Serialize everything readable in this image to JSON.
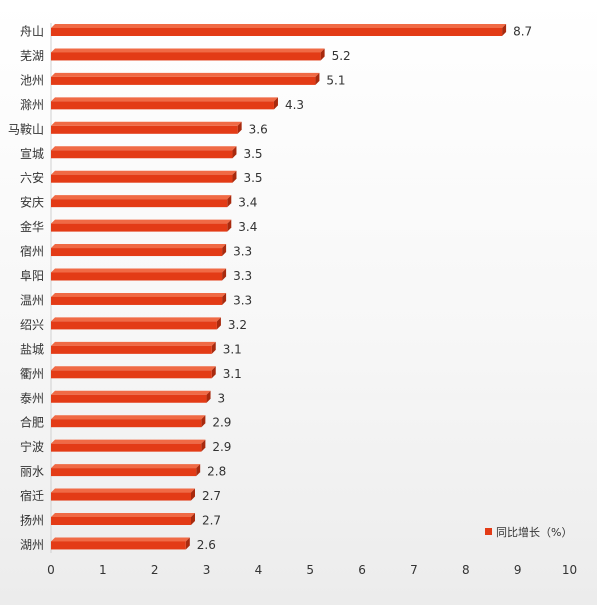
{
  "chart_data": {
    "type": "bar",
    "orientation": "horizontal",
    "categories": [
      "舟山",
      "芜湖",
      "池州",
      "滁州",
      "马鞍山",
      "宣城",
      "六安",
      "安庆",
      "金华",
      "宿州",
      "阜阳",
      "温州",
      "绍兴",
      "盐城",
      "衢州",
      "泰州",
      "合肥",
      "宁波",
      "丽水",
      "宿迁",
      "扬州",
      "湖州"
    ],
    "series": [
      {
        "name": "同比增长（%）",
        "values": [
          8.7,
          5.2,
          5.1,
          4.3,
          3.6,
          3.5,
          3.5,
          3.4,
          3.4,
          3.3,
          3.3,
          3.3,
          3.2,
          3.1,
          3.1,
          3,
          2.9,
          2.9,
          2.8,
          2.7,
          2.7,
          2.6
        ],
        "value_labels": [
          "8.7",
          "5.2",
          "5.1",
          "4.3",
          "3.6",
          "3.5",
          "3.5",
          "3.4",
          "3.4",
          "3.3",
          "3.3",
          "3.3",
          "3.2",
          "3.1",
          "3.1",
          "3",
          "2.9",
          "2.9",
          "2.8",
          "2.7",
          "2.7",
          "2.6"
        ]
      }
    ],
    "x_ticks": [
      "0",
      "1",
      "2",
      "3",
      "4",
      "5",
      "6",
      "7",
      "8",
      "9",
      "10"
    ],
    "xlim": [
      0,
      10
    ],
    "legend_position": "bottom-right",
    "grid": false,
    "colors": {
      "bar": "#e33b16",
      "bar_top": "#f06a45",
      "bar_side": "#a82a0e",
      "text": "#333333"
    }
  }
}
